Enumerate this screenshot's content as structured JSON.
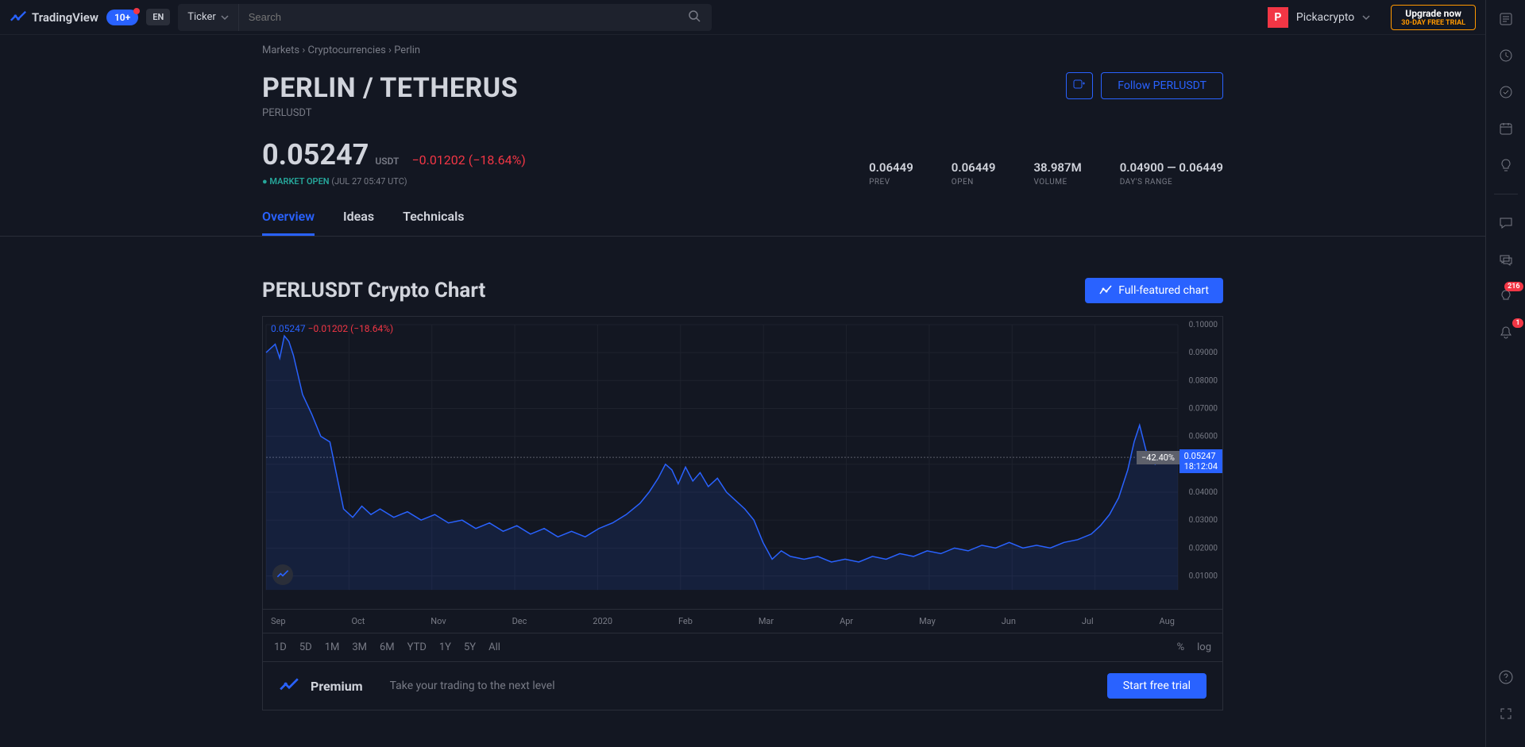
{
  "topbar": {
    "brand": "TradingView",
    "notif_count": "10+",
    "lang": "EN",
    "ticker_label": "Ticker",
    "search_placeholder": "Search",
    "user_initial": "P",
    "user_name": "Pickacrypto",
    "upgrade_line1": "Upgrade now",
    "upgrade_line2": "30-DAY FREE TRIAL"
  },
  "breadcrumb": {
    "markets": "Markets",
    "crypto": "Cryptocurrencies",
    "current": "Perlin"
  },
  "header": {
    "title": "PERLIN / TETHERUS",
    "subtitle": "PERLUSDT",
    "follow_label": "Follow PERLUSDT"
  },
  "price": {
    "value": "0.05247",
    "unit": "USDT",
    "change_abs": "−0.01202",
    "change_pct": "(−18.64%)",
    "market_status": "MARKET OPEN",
    "market_time": "(JUL 27 05:47 UTC)"
  },
  "stats": {
    "prev": {
      "value": "0.06449",
      "label": "PREV"
    },
    "open": {
      "value": "0.06449",
      "label": "OPEN"
    },
    "volume": {
      "value": "38.987M",
      "label": "VOLUME"
    },
    "range": {
      "value": "0.04900 — 0.06449",
      "label": "DAY'S RANGE"
    }
  },
  "tabs": {
    "overview": "Overview",
    "ideas": "Ideas",
    "technicals": "Technicals"
  },
  "chart": {
    "title": "PERLUSDT Crypto Chart",
    "full_featured": "Full-featured chart",
    "legend_price": "0.05247",
    "legend_change": "−0.01202 (−18.64%)",
    "pct_tag": "−42.40%",
    "price_tag": "0.05247",
    "time_tag": "18:12:04",
    "y_max": 0.1,
    "y_min": 0.005,
    "y_ticks": [
      "0.10000",
      "0.09000",
      "0.08000",
      "0.07000",
      "0.06000",
      "0.05000",
      "0.04000",
      "0.03000",
      "0.02000",
      "0.01000"
    ],
    "x_labels": [
      "Sep",
      "Oct",
      "Nov",
      "Dec",
      "2020",
      "Feb",
      "Mar",
      "Apr",
      "May",
      "Jun",
      "Jul",
      "Aug"
    ],
    "line_color": "#2962ff",
    "area_color": "rgba(41,98,255,0.12)",
    "grid_color": "#1e222d",
    "current_line_y": 0.05247,
    "series": [
      [
        0.0,
        0.09
      ],
      [
        0.01,
        0.093
      ],
      [
        0.015,
        0.088
      ],
      [
        0.02,
        0.096
      ],
      [
        0.025,
        0.094
      ],
      [
        0.03,
        0.089
      ],
      [
        0.04,
        0.075
      ],
      [
        0.05,
        0.068
      ],
      [
        0.06,
        0.06
      ],
      [
        0.07,
        0.058
      ],
      [
        0.075,
        0.05
      ],
      [
        0.085,
        0.034
      ],
      [
        0.095,
        0.031
      ],
      [
        0.105,
        0.035
      ],
      [
        0.115,
        0.032
      ],
      [
        0.125,
        0.034
      ],
      [
        0.14,
        0.031
      ],
      [
        0.155,
        0.033
      ],
      [
        0.17,
        0.03
      ],
      [
        0.185,
        0.032
      ],
      [
        0.2,
        0.029
      ],
      [
        0.215,
        0.03
      ],
      [
        0.23,
        0.027
      ],
      [
        0.245,
        0.029
      ],
      [
        0.26,
        0.026
      ],
      [
        0.275,
        0.028
      ],
      [
        0.29,
        0.025
      ],
      [
        0.305,
        0.027
      ],
      [
        0.32,
        0.024
      ],
      [
        0.335,
        0.026
      ],
      [
        0.35,
        0.024
      ],
      [
        0.365,
        0.027
      ],
      [
        0.38,
        0.029
      ],
      [
        0.395,
        0.032
      ],
      [
        0.41,
        0.036
      ],
      [
        0.42,
        0.04
      ],
      [
        0.43,
        0.045
      ],
      [
        0.438,
        0.05
      ],
      [
        0.445,
        0.048
      ],
      [
        0.452,
        0.043
      ],
      [
        0.46,
        0.049
      ],
      [
        0.468,
        0.044
      ],
      [
        0.476,
        0.047
      ],
      [
        0.485,
        0.042
      ],
      [
        0.495,
        0.045
      ],
      [
        0.505,
        0.04
      ],
      [
        0.515,
        0.037
      ],
      [
        0.525,
        0.034
      ],
      [
        0.535,
        0.03
      ],
      [
        0.545,
        0.022
      ],
      [
        0.555,
        0.016
      ],
      [
        0.565,
        0.019
      ],
      [
        0.575,
        0.017
      ],
      [
        0.59,
        0.016
      ],
      [
        0.605,
        0.017
      ],
      [
        0.62,
        0.015
      ],
      [
        0.635,
        0.016
      ],
      [
        0.65,
        0.015
      ],
      [
        0.665,
        0.017
      ],
      [
        0.68,
        0.016
      ],
      [
        0.695,
        0.018
      ],
      [
        0.71,
        0.017
      ],
      [
        0.725,
        0.019
      ],
      [
        0.74,
        0.018
      ],
      [
        0.755,
        0.02
      ],
      [
        0.77,
        0.019
      ],
      [
        0.785,
        0.021
      ],
      [
        0.8,
        0.02
      ],
      [
        0.815,
        0.022
      ],
      [
        0.83,
        0.02
      ],
      [
        0.845,
        0.021
      ],
      [
        0.86,
        0.02
      ],
      [
        0.875,
        0.022
      ],
      [
        0.89,
        0.023
      ],
      [
        0.905,
        0.025
      ],
      [
        0.915,
        0.028
      ],
      [
        0.925,
        0.032
      ],
      [
        0.935,
        0.038
      ],
      [
        0.945,
        0.048
      ],
      [
        0.952,
        0.058
      ],
      [
        0.958,
        0.064
      ],
      [
        0.965,
        0.055
      ],
      [
        0.975,
        0.05
      ],
      [
        0.985,
        0.052
      ],
      [
        1.0,
        0.05247
      ]
    ]
  },
  "ranges": {
    "items": [
      "1D",
      "5D",
      "1M",
      "3M",
      "6M",
      "YTD",
      "1Y",
      "5Y",
      "All"
    ],
    "pct": "%",
    "log": "log"
  },
  "premium": {
    "title": "Premium",
    "subtitle": "Take your trading to the next level",
    "cta": "Start free trial"
  },
  "rail": {
    "badge1": "216",
    "badge2": "1"
  },
  "colors": {
    "accent": "#2962ff",
    "down": "#f23645",
    "up": "#26a69a",
    "bg": "#131722",
    "border": "#2a2e39",
    "muted": "#787b86"
  }
}
